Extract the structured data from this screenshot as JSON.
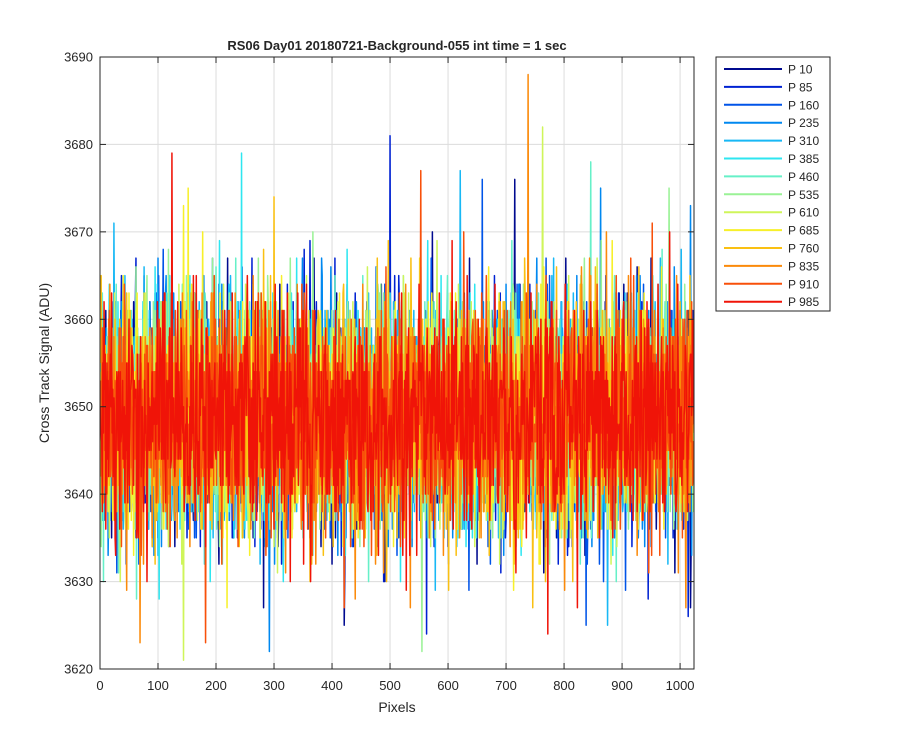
{
  "chart_data": {
    "type": "line",
    "title": "RS06 Day01 20180721-Background-055 int time = 1 sec",
    "xlabel": "Pixels",
    "ylabel": "Cross Track Signal (ADU)",
    "xlim": [
      0,
      1024
    ],
    "ylim": [
      3620,
      3690
    ],
    "xticks": [
      0,
      100,
      200,
      300,
      400,
      500,
      600,
      700,
      800,
      900,
      1000
    ],
    "yticks": [
      3620,
      3630,
      3640,
      3650,
      3660,
      3670,
      3680,
      3690
    ],
    "grid": true,
    "legend_position": "outside-top-right",
    "n_points": 1024,
    "series": [
      {
        "name": "P 10",
        "color": "#000a8f",
        "mean": 3649,
        "std": 6.5,
        "min": 3625,
        "max": 3676
      },
      {
        "name": "P 85",
        "color": "#0022d2",
        "mean": 3649,
        "std": 6.5,
        "min": 3624,
        "max": 3681
      },
      {
        "name": "P 160",
        "color": "#0054e8",
        "mean": 3649,
        "std": 6.5,
        "min": 3625,
        "max": 3676
      },
      {
        "name": "P 235",
        "color": "#0088f0",
        "mean": 3649,
        "std": 6.5,
        "min": 3622,
        "max": 3675
      },
      {
        "name": "P 310",
        "color": "#18b8f5",
        "mean": 3649,
        "std": 6.5,
        "min": 3625,
        "max": 3677
      },
      {
        "name": "P 385",
        "color": "#2ee6f0",
        "mean": 3649,
        "std": 6.5,
        "min": 3628,
        "max": 3679
      },
      {
        "name": "P 460",
        "color": "#66f0c8",
        "mean": 3649,
        "std": 6.5,
        "min": 3628,
        "max": 3678
      },
      {
        "name": "P 535",
        "color": "#9af296",
        "mean": 3649,
        "std": 6.5,
        "min": 3622,
        "max": 3675
      },
      {
        "name": "P 610",
        "color": "#cff55a",
        "mean": 3649,
        "std": 6.5,
        "min": 3621,
        "max": 3682
      },
      {
        "name": "P 685",
        "color": "#f7f02a",
        "mean": 3649,
        "std": 6.5,
        "min": 3627,
        "max": 3675
      },
      {
        "name": "P 760",
        "color": "#fac012",
        "mean": 3649,
        "std": 6.5,
        "min": 3627,
        "max": 3674
      },
      {
        "name": "P 835",
        "color": "#fb8a0a",
        "mean": 3649,
        "std": 6.5,
        "min": 3623,
        "max": 3688
      },
      {
        "name": "P 910",
        "color": "#f8500a",
        "mean": 3649,
        "std": 6.5,
        "min": 3623,
        "max": 3677
      },
      {
        "name": "P 985",
        "color": "#f01408",
        "mean": 3649,
        "std": 6.5,
        "min": 3624,
        "max": 3679
      }
    ]
  }
}
